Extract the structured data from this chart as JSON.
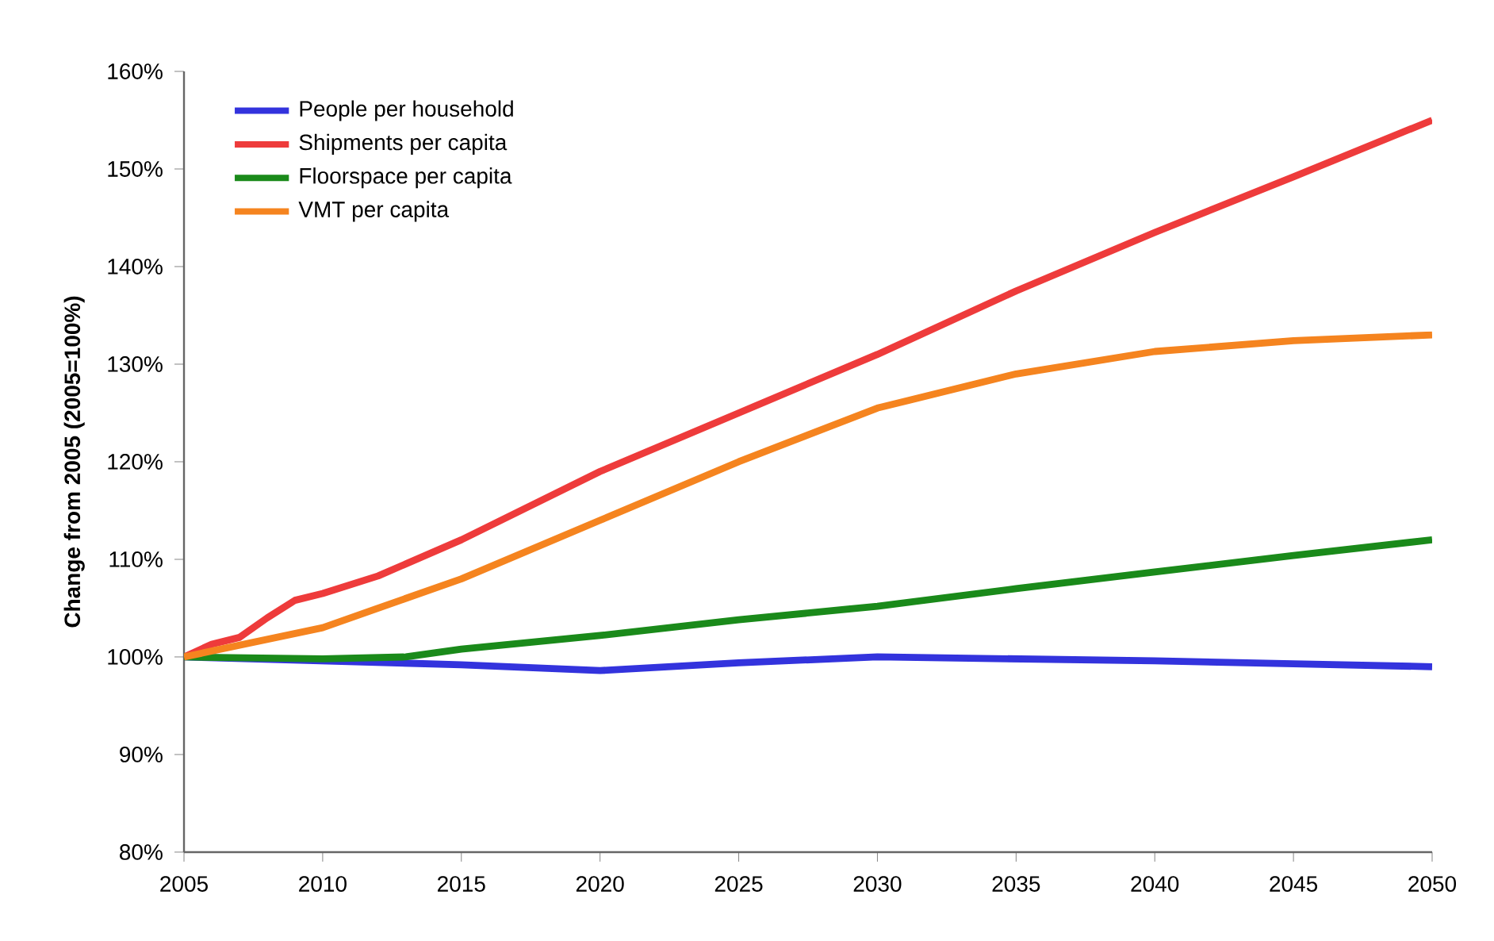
{
  "chart_data": {
    "type": "line",
    "ylabel": "Change from 2005 (2005=100%)",
    "xlim": [
      2005,
      2050
    ],
    "xticks": [
      2005,
      2010,
      2015,
      2020,
      2025,
      2030,
      2035,
      2040,
      2045,
      2050
    ],
    "ylim": [
      80,
      160
    ],
    "yticks": [
      {
        "value": 80,
        "label": "80%"
      },
      {
        "value": 90,
        "label": "90%"
      },
      {
        "value": 100,
        "label": "100%"
      },
      {
        "value": 110,
        "label": "110%"
      },
      {
        "value": 120,
        "label": "120%"
      },
      {
        "value": 130,
        "label": "130%"
      },
      {
        "value": 140,
        "label": "140%"
      },
      {
        "value": 150,
        "label": "150%"
      },
      {
        "value": 160,
        "label": "160%"
      }
    ],
    "grid": false,
    "legend": "top left",
    "marker": "none",
    "line_style": "solid",
    "series": [
      {
        "name": "People per household",
        "color": "#3333dd",
        "x": [
          2005,
          2015,
          2020,
          2025,
          2030,
          2035,
          2040,
          2045,
          2050
        ],
        "values": [
          100,
          99.2,
          98.6,
          99.4,
          100,
          99.8,
          99.6,
          99.3,
          99
        ]
      },
      {
        "name": "Shipments per capita",
        "color": "#ee3b3b",
        "x": [
          2005,
          2006,
          2007,
          2008,
          2009,
          2010,
          2012,
          2015,
          2020,
          2025,
          2030,
          2035,
          2040,
          2045,
          2050
        ],
        "values": [
          100,
          101.3,
          102,
          104,
          105.8,
          106.5,
          108.3,
          112,
          119,
          125,
          131,
          137.5,
          143.5,
          149.2,
          155
        ]
      },
      {
        "name": "Floorspace per capita",
        "color": "#1a8a1a",
        "x": [
          2005,
          2010,
          2013,
          2015,
          2020,
          2025,
          2030,
          2035,
          2040,
          2045,
          2050
        ],
        "values": [
          100,
          99.8,
          100,
          100.8,
          102.2,
          103.8,
          105.2,
          107,
          108.7,
          110.4,
          112
        ]
      },
      {
        "name": "VMT per capita",
        "color": "#f5841f",
        "x": [
          2005,
          2010,
          2015,
          2020,
          2025,
          2030,
          2035,
          2040,
          2045,
          2050
        ],
        "values": [
          100,
          103,
          108,
          114,
          120,
          125.5,
          129,
          131.3,
          132.4,
          133
        ]
      }
    ]
  }
}
